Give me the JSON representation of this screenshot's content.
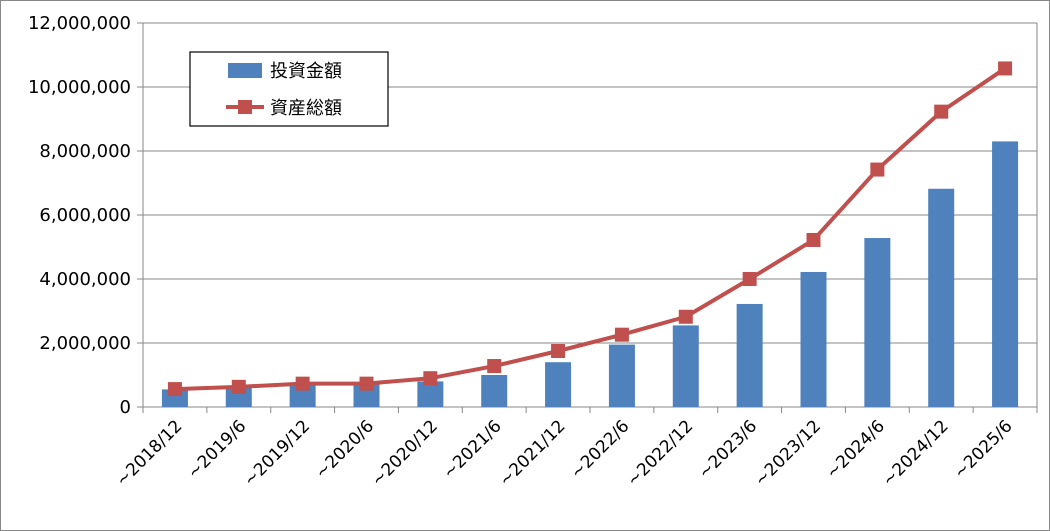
{
  "chart_data": {
    "type": "bar+line",
    "categories": [
      "~2018/12",
      "~2019/6",
      "~2019/12",
      "~2020/6",
      "~2020/12",
      "~2021/6",
      "~2021/12",
      "~2022/6",
      "~2022/12",
      "~2023/6",
      "~2023/12",
      "~2024/6",
      "~2024/12",
      "~2025/6"
    ],
    "y_ticks": [
      "0",
      "2,000,000",
      "4,000,000",
      "6,000,000",
      "8,000,000",
      "10,000,000",
      "12,000,000"
    ],
    "ylim": [
      0,
      12000000
    ],
    "grid": "horizontal",
    "legend_position": "top-left",
    "series": [
      {
        "name": "投資金額",
        "type": "bar",
        "color": "#4f81bd",
        "values": [
          550000,
          600000,
          700000,
          750000,
          800000,
          1000000,
          1400000,
          1950000,
          2550000,
          3220000,
          4220000,
          5280000,
          6820000,
          8300000
        ]
      },
      {
        "name": "資産総額",
        "type": "line",
        "marker": "square",
        "color": "#c0504d",
        "values": [
          560000,
          630000,
          730000,
          730000,
          900000,
          1280000,
          1750000,
          2260000,
          2820000,
          4000000,
          5220000,
          7420000,
          9230000,
          10580000
        ]
      }
    ]
  }
}
